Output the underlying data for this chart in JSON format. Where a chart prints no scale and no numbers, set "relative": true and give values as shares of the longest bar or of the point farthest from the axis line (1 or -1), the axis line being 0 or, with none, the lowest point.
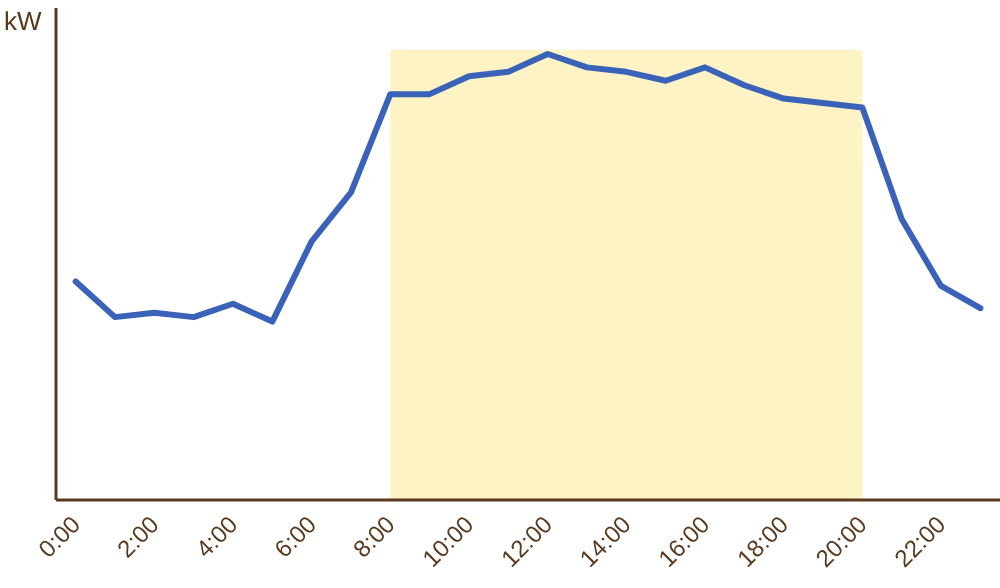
{
  "chart_data": {
    "type": "line",
    "ylabel": "kW",
    "relative": true,
    "x": [
      0,
      1,
      2,
      3,
      4,
      5,
      6,
      7,
      8,
      9,
      10,
      11,
      12,
      13,
      14,
      15,
      16,
      17,
      18,
      19,
      20,
      21,
      22,
      23
    ],
    "series": [
      {
        "color": "#3a62b8",
        "values": [
          0.49,
          0.41,
          0.42,
          0.41,
          0.44,
          0.4,
          0.58,
          0.69,
          0.91,
          0.91,
          0.95,
          0.96,
          1,
          0.97,
          0.96,
          0.94,
          0.97,
          0.93,
          0.9,
          0.89,
          0.88,
          0.63,
          0.48,
          0.43
        ]
      }
    ],
    "xlim": [
      -0.5,
      23.5
    ],
    "xticks": [
      {
        "value": 0,
        "label": "0:00"
      },
      {
        "value": 2,
        "label": "2:00"
      },
      {
        "value": 4,
        "label": "4:00"
      },
      {
        "value": 6,
        "label": "6:00"
      },
      {
        "value": 8,
        "label": "8:00"
      },
      {
        "value": 10,
        "label": "10:00"
      },
      {
        "value": 12,
        "label": "12:00"
      },
      {
        "value": 14,
        "label": "14:00"
      },
      {
        "value": 16,
        "label": "16:00"
      },
      {
        "value": 18,
        "label": "18:00"
      },
      {
        "value": 20,
        "label": "20:00"
      },
      {
        "value": 22,
        "label": "22:00"
      }
    ],
    "bands": [
      {
        "axis": "x",
        "from": 8,
        "to": 20,
        "color": "#fdf3c4"
      }
    ],
    "grid": false,
    "marker": "none",
    "line_style": "solid"
  }
}
